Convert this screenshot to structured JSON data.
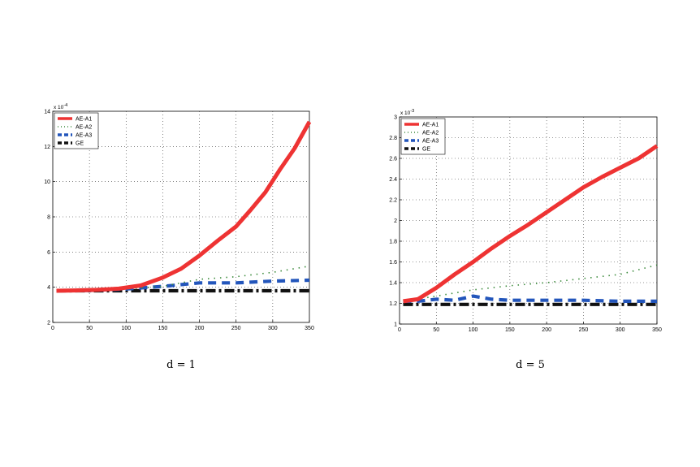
{
  "chart_data": [
    {
      "type": "line",
      "caption": "d = 1",
      "y_multiplier": "x 10",
      "y_exponent": "-4",
      "xlim": [
        0,
        350
      ],
      "ylim": [
        2,
        14
      ],
      "xticks": [
        0,
        50,
        100,
        150,
        200,
        250,
        300,
        350
      ],
      "yticks": [
        2,
        4,
        6,
        8,
        10,
        12,
        14
      ],
      "grid": true,
      "legend_position": "top-left",
      "series": [
        {
          "name": "AE-A1",
          "color": "#ee3333",
          "style": "solid",
          "x": [
            5,
            30,
            60,
            90,
            120,
            150,
            175,
            200,
            225,
            250,
            270,
            290,
            310,
            330,
            350
          ],
          "y": [
            3.8,
            3.82,
            3.85,
            3.92,
            4.1,
            4.55,
            5.05,
            5.8,
            6.65,
            7.45,
            8.4,
            9.4,
            10.7,
            11.9,
            13.4
          ]
        },
        {
          "name": "AE-A2",
          "color": "#3a8a3a",
          "style": "dotted",
          "x": [
            5,
            50,
            100,
            150,
            200,
            250,
            300,
            350
          ],
          "y": [
            3.8,
            3.85,
            3.9,
            4.05,
            4.45,
            4.6,
            4.85,
            5.2
          ]
        },
        {
          "name": "AE-A3",
          "color": "#2255bb",
          "style": "dashed",
          "x": [
            5,
            50,
            100,
            150,
            200,
            250,
            300,
            350
          ],
          "y": [
            3.8,
            3.82,
            3.9,
            4.05,
            4.25,
            4.25,
            4.35,
            4.4
          ]
        },
        {
          "name": "GE",
          "color": "#111111",
          "style": "dashdot",
          "x": [
            5,
            350
          ],
          "y": [
            3.8,
            3.8
          ]
        }
      ]
    },
    {
      "type": "line",
      "caption": "d = 5",
      "y_multiplier": "x 10",
      "y_exponent": "-3",
      "xlim": [
        0,
        350
      ],
      "ylim": [
        1,
        3
      ],
      "xticks": [
        0,
        50,
        100,
        150,
        200,
        250,
        300,
        350
      ],
      "yticks": [
        1,
        1.2,
        1.4,
        1.6,
        1.8,
        2,
        2.2,
        2.4,
        2.6,
        2.8,
        3
      ],
      "grid": true,
      "legend_position": "top-left",
      "series": [
        {
          "name": "AE-A1",
          "color": "#ee3333",
          "style": "solid",
          "x": [
            5,
            25,
            50,
            75,
            100,
            125,
            150,
            175,
            200,
            225,
            250,
            275,
            300,
            325,
            350
          ],
          "y": [
            1.22,
            1.24,
            1.35,
            1.48,
            1.6,
            1.73,
            1.85,
            1.96,
            2.08,
            2.2,
            2.32,
            2.42,
            2.51,
            2.6,
            2.72
          ]
        },
        {
          "name": "AE-A2",
          "color": "#3a8a3a",
          "style": "dotted",
          "x": [
            5,
            50,
            100,
            150,
            200,
            250,
            300,
            350
          ],
          "y": [
            1.22,
            1.27,
            1.33,
            1.37,
            1.4,
            1.44,
            1.48,
            1.57
          ]
        },
        {
          "name": "AE-A3",
          "color": "#2255bb",
          "style": "dashed",
          "x": [
            5,
            25,
            50,
            75,
            100,
            125,
            150,
            175,
            200,
            250,
            300,
            350
          ],
          "y": [
            1.22,
            1.22,
            1.24,
            1.23,
            1.27,
            1.24,
            1.23,
            1.23,
            1.23,
            1.23,
            1.22,
            1.22
          ]
        },
        {
          "name": "GE",
          "color": "#111111",
          "style": "dashdot",
          "x": [
            5,
            350
          ],
          "y": [
            1.19,
            1.19
          ]
        }
      ]
    }
  ]
}
